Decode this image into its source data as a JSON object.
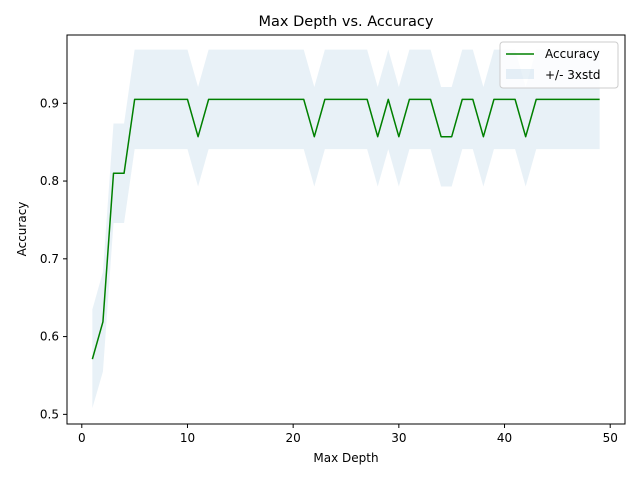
{
  "chart_data": {
    "type": "line",
    "title": "Max Depth vs. Accuracy",
    "xlabel": "Max Depth",
    "ylabel": "Accuracy",
    "xlim": [
      -1.4,
      51.4
    ],
    "ylim": [
      0.4876,
      0.9878
    ],
    "xticks": [
      0,
      10,
      20,
      30,
      40,
      50
    ],
    "yticks": [
      0.5,
      0.6,
      0.7,
      0.8,
      0.9
    ],
    "grid": false,
    "legend_position": "top-right",
    "legend": [
      {
        "label": "Accuracy",
        "kind": "line",
        "color": "#008000"
      },
      {
        "label": "+/- 3xstd",
        "kind": "band",
        "color": "#1f77b4"
      }
    ],
    "series": [
      {
        "name": "Accuracy",
        "color": "#008000",
        "x": [
          1,
          2,
          3,
          4,
          5,
          6,
          7,
          8,
          9,
          10,
          11,
          12,
          13,
          14,
          15,
          16,
          17,
          18,
          19,
          20,
          21,
          22,
          23,
          24,
          25,
          26,
          27,
          28,
          29,
          30,
          31,
          32,
          33,
          34,
          35,
          36,
          37,
          38,
          39,
          40,
          41,
          42,
          43,
          44,
          45,
          46,
          47,
          48,
          49
        ],
        "y": [
          0.571,
          0.619,
          0.81,
          0.81,
          0.905,
          0.905,
          0.905,
          0.905,
          0.905,
          0.905,
          0.857,
          0.905,
          0.905,
          0.905,
          0.905,
          0.905,
          0.905,
          0.905,
          0.905,
          0.905,
          0.905,
          0.857,
          0.905,
          0.905,
          0.905,
          0.905,
          0.905,
          0.857,
          0.905,
          0.857,
          0.905,
          0.905,
          0.905,
          0.857,
          0.857,
          0.905,
          0.905,
          0.857,
          0.905,
          0.905,
          0.905,
          0.857,
          0.905,
          0.905,
          0.905,
          0.905,
          0.905,
          0.905,
          0.905
        ]
      }
    ],
    "band": {
      "name": "+/- 3xstd",
      "color": "#1f77b4",
      "opacity": 0.1,
      "x": [
        1,
        2,
        3,
        4,
        5,
        6,
        7,
        8,
        9,
        10,
        11,
        12,
        13,
        14,
        15,
        16,
        17,
        18,
        19,
        20,
        21,
        22,
        23,
        24,
        25,
        26,
        27,
        28,
        29,
        30,
        31,
        32,
        33,
        34,
        35,
        36,
        37,
        38,
        39,
        40,
        41,
        42,
        43,
        44,
        45,
        46,
        47,
        48,
        49
      ],
      "lower": [
        0.508,
        0.555,
        0.746,
        0.746,
        0.841,
        0.841,
        0.841,
        0.841,
        0.841,
        0.841,
        0.793,
        0.841,
        0.841,
        0.841,
        0.841,
        0.841,
        0.841,
        0.841,
        0.841,
        0.841,
        0.841,
        0.793,
        0.841,
        0.841,
        0.841,
        0.841,
        0.841,
        0.793,
        0.841,
        0.793,
        0.841,
        0.841,
        0.841,
        0.793,
        0.793,
        0.841,
        0.841,
        0.793,
        0.841,
        0.841,
        0.841,
        0.793,
        0.841,
        0.841,
        0.841,
        0.841,
        0.841,
        0.841,
        0.841
      ],
      "upper": [
        0.635,
        0.683,
        0.874,
        0.874,
        0.969,
        0.969,
        0.969,
        0.969,
        0.969,
        0.969,
        0.921,
        0.969,
        0.969,
        0.969,
        0.969,
        0.969,
        0.969,
        0.969,
        0.969,
        0.969,
        0.969,
        0.921,
        0.969,
        0.969,
        0.969,
        0.969,
        0.969,
        0.921,
        0.969,
        0.921,
        0.969,
        0.969,
        0.969,
        0.921,
        0.921,
        0.969,
        0.969,
        0.921,
        0.969,
        0.969,
        0.969,
        0.921,
        0.969,
        0.969,
        0.969,
        0.969,
        0.969,
        0.969,
        0.969
      ]
    }
  }
}
